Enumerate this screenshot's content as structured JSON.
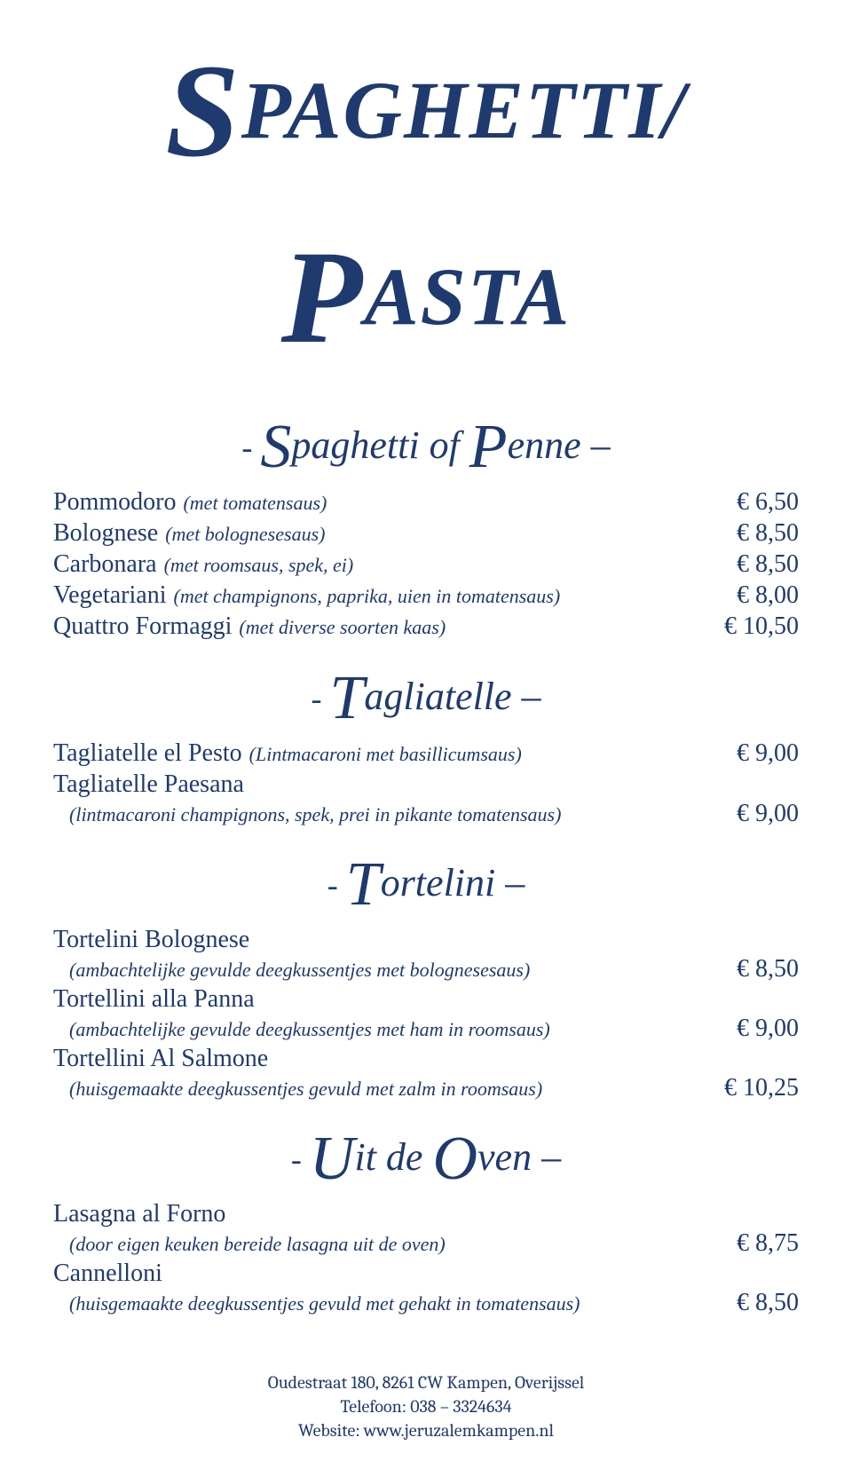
{
  "colors": {
    "text": "#1f3a6e",
    "background": "#ffffff"
  },
  "title": {
    "word1_cap": "S",
    "word1_rest": "PAGHETTI/",
    "word2_cap": "P",
    "word2_rest": "ASTA"
  },
  "sections": [
    {
      "heading": {
        "prefix": "‐ ",
        "cap1": "S",
        "rest1": "paghetti of ",
        "cap2": "P",
        "rest2": "enne –"
      },
      "items": [
        {
          "name": "Pommodoro",
          "desc": "(met tomatensaus)",
          "price": "€  6,50",
          "inline": true
        },
        {
          "name": "Bolognese",
          "desc": "(met bolognesesaus)",
          "price": "€  8,50",
          "inline": true
        },
        {
          "name": "Carbonara",
          "desc": "(met roomsaus, spek, ei)",
          "price": "€  8,50",
          "inline": true
        },
        {
          "name": "Vegetariani",
          "desc": "(met champignons, paprika, uien in tomatensaus)",
          "price": "€  8,00",
          "inline": true
        },
        {
          "name": "Quattro Formaggi",
          "desc": "(met diverse soorten kaas)",
          "price": "€  10,50",
          "inline": true
        }
      ]
    },
    {
      "heading": {
        "prefix": "‐ ",
        "cap1": "T",
        "rest1": "agliatelle –",
        "cap2": "",
        "rest2": ""
      },
      "items": [
        {
          "name": "Tagliatelle el Pesto",
          "desc": "(Lintmacaroni met basillicumsaus)",
          "price": "€  9,00",
          "inline": true
        },
        {
          "name": "Tagliatelle Paesana",
          "desc": "(lintmacaroni champignons, spek, prei in pikante tomatensaus)",
          "price": "€  9,00",
          "inline": false
        }
      ]
    },
    {
      "heading": {
        "prefix": "‐ ",
        "cap1": "T",
        "rest1": "ortelini –",
        "cap2": "",
        "rest2": ""
      },
      "items": [
        {
          "name": "Tortelini Bolognese",
          "desc": "(ambachtelijke gevulde deegkussentjes met bolognesesaus)",
          "price": "€  8,50",
          "inline": false
        },
        {
          "name": "Tortellini alla Panna",
          "desc": "(ambachtelijke gevulde deegkussentjes met ham in roomsaus)",
          "price": "€  9,00",
          "inline": false
        },
        {
          "name": "Tortellini Al Salmone",
          "desc": "(huisgemaakte deegkussentjes gevuld met zalm in roomsaus)",
          "price": "€  10,25",
          "inline": false
        }
      ]
    },
    {
      "heading": {
        "prefix": "‐ ",
        "cap1": "U",
        "rest1": "it de  ",
        "cap2": "O",
        "rest2": "ven –"
      },
      "items": [
        {
          "name": "Lasagna al Forno",
          "desc": "(door eigen keuken bereide lasagna uit de oven)",
          "price": "€  8,75",
          "inline": false
        },
        {
          "name": "Cannelloni",
          "desc": "(huisgemaakte deegkussentjes gevuld met gehakt in tomatensaus)",
          "price": "€  8,50",
          "inline": false
        }
      ]
    }
  ],
  "footer": {
    "line1": "Oudestraat 180, 8261 CW  Kampen, Overijssel",
    "line2": "Telefoon: 038 – 3324634",
    "line3": "Website: www.jeruzalemkampen.nl"
  }
}
